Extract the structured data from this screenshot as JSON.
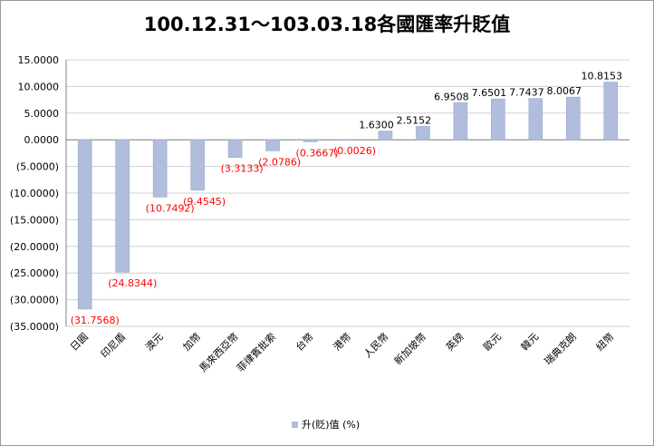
{
  "chart_data": {
    "type": "bar",
    "title": "100.12.31～103.03.18各國匯率升貶值",
    "series_name": "升(貶)值 (%)",
    "ylim": [
      -35,
      15
    ],
    "y_ticks": [
      15,
      10,
      5,
      0,
      -5,
      -10,
      -15,
      -20,
      -25,
      -30,
      -35
    ],
    "y_tick_labels": [
      "15.0000",
      "10.0000",
      "5.0000",
      "0.0000",
      "(5.0000)",
      "(10.0000)",
      "(15.0000)",
      "(20.0000)",
      "(25.0000)",
      "(30.0000)",
      "(35.0000)"
    ],
    "categories": [
      "日圓",
      "印尼盾",
      "澳元",
      "加幣",
      "馬來西亞幣",
      "菲律賓批索",
      "台幣",
      "港幣",
      "人民幣",
      "新加坡幣",
      "英鎊",
      "歐元",
      "韓元",
      "瑞典克朗",
      "紐幣"
    ],
    "values": [
      -31.7568,
      -24.8344,
      -10.7492,
      -9.4545,
      -3.3133,
      -2.0786,
      -0.3667,
      -0.0026,
      1.63,
      2.5152,
      6.9508,
      7.6501,
      7.7437,
      8.0067,
      10.8153
    ],
    "data_labels": [
      "(31.7568)",
      "(24.8344)",
      "(10.7492)",
      "(9.4545)",
      "(3.3133)",
      "(2.0786)",
      "(0.3667)",
      "(0.0026)",
      "1.6300",
      "2.5152",
      "6.9508",
      "7.6501",
      "7.7437",
      "8.0067",
      "10.8153"
    ],
    "colors": {
      "bar": "#b0bddc",
      "bar_edge": "#9aa8cc",
      "negative_label": "#ff0000",
      "positive_label": "#000000",
      "grid": "#d0d0d0"
    },
    "legend_position": "bottom-center",
    "grid": true
  }
}
